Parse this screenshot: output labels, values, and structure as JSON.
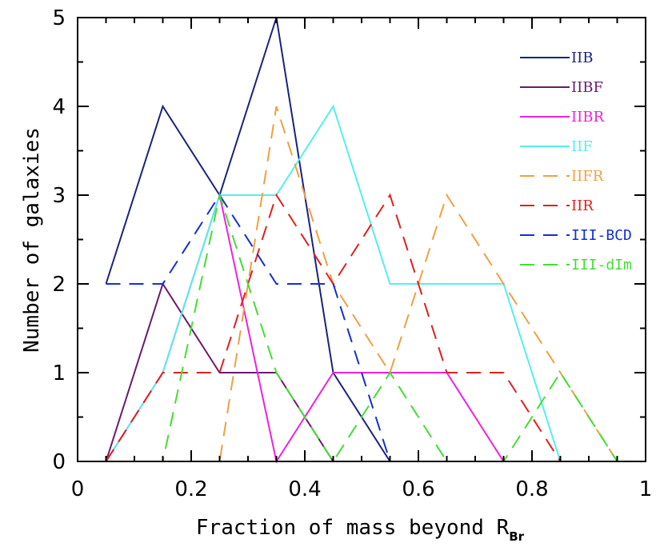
{
  "chart_data": {
    "type": "line",
    "title": "",
    "xlabel": "Fraction of mass beyond R",
    "xlabel_subscript": "Br",
    "ylabel": "Number of galaxies",
    "xlim": [
      0,
      1
    ],
    "ylim": [
      0,
      5
    ],
    "x_ticks": [
      "0",
      "0.2",
      "0.4",
      "0.6",
      "0.8",
      "1"
    ],
    "x_tick_values": [
      0,
      0.2,
      0.4,
      0.6,
      0.8,
      1
    ],
    "y_ticks": [
      "0",
      "1",
      "2",
      "3",
      "4",
      "5"
    ],
    "y_tick_values": [
      0,
      1,
      2,
      3,
      4,
      5
    ],
    "grid": false,
    "legend_position": "top-right",
    "x": [
      0.05,
      0.15,
      0.25,
      0.35,
      0.45,
      0.55,
      0.65,
      0.75,
      0.85,
      0.95
    ],
    "series": [
      {
        "name": "IIB",
        "color": "#1a237e",
        "dash": "solid",
        "legend_font": "serif",
        "values": [
          2,
          4,
          3,
          5,
          1,
          0,
          0,
          0,
          0,
          0
        ]
      },
      {
        "name": "IIBF",
        "color": "#6a1b6a",
        "dash": "solid",
        "legend_font": "serif",
        "values": [
          0,
          2,
          1,
          1,
          0,
          0,
          0,
          0,
          0,
          0
        ]
      },
      {
        "name": "IIBR",
        "color": "#ee22dd",
        "dash": "solid",
        "legend_font": "serif",
        "values": [
          0,
          1,
          3,
          0,
          1,
          1,
          1,
          0,
          0,
          0
        ]
      },
      {
        "name": "IIF",
        "color": "#55eeee",
        "dash": "solid",
        "legend_font": "serif",
        "values": [
          0,
          1,
          3,
          3,
          4,
          2,
          2,
          2,
          0,
          0
        ]
      },
      {
        "name": "IIFR",
        "color": "#f0a040",
        "dash": "dashed",
        "legend_font": "serif",
        "values": [
          0,
          0,
          0,
          4,
          2,
          1,
          3,
          2,
          1,
          0
        ]
      },
      {
        "name": "IIR",
        "color": "#e02020",
        "dash": "dashed",
        "legend_font": "serif",
        "values": [
          0,
          1,
          1,
          3,
          2,
          3,
          1,
          1,
          0,
          0
        ]
      },
      {
        "name": "III-BCD",
        "color": "#1530d0",
        "dash": "dashed",
        "legend_font": "mono",
        "values": [
          2,
          2,
          3,
          2,
          2,
          0,
          0,
          0,
          0,
          0
        ]
      },
      {
        "name": "III-dIm",
        "color": "#44dd33",
        "dash": "dashed",
        "legend_font": "mono",
        "values": [
          0,
          0,
          3,
          1,
          0,
          1,
          0,
          0,
          1,
          0
        ]
      }
    ]
  }
}
